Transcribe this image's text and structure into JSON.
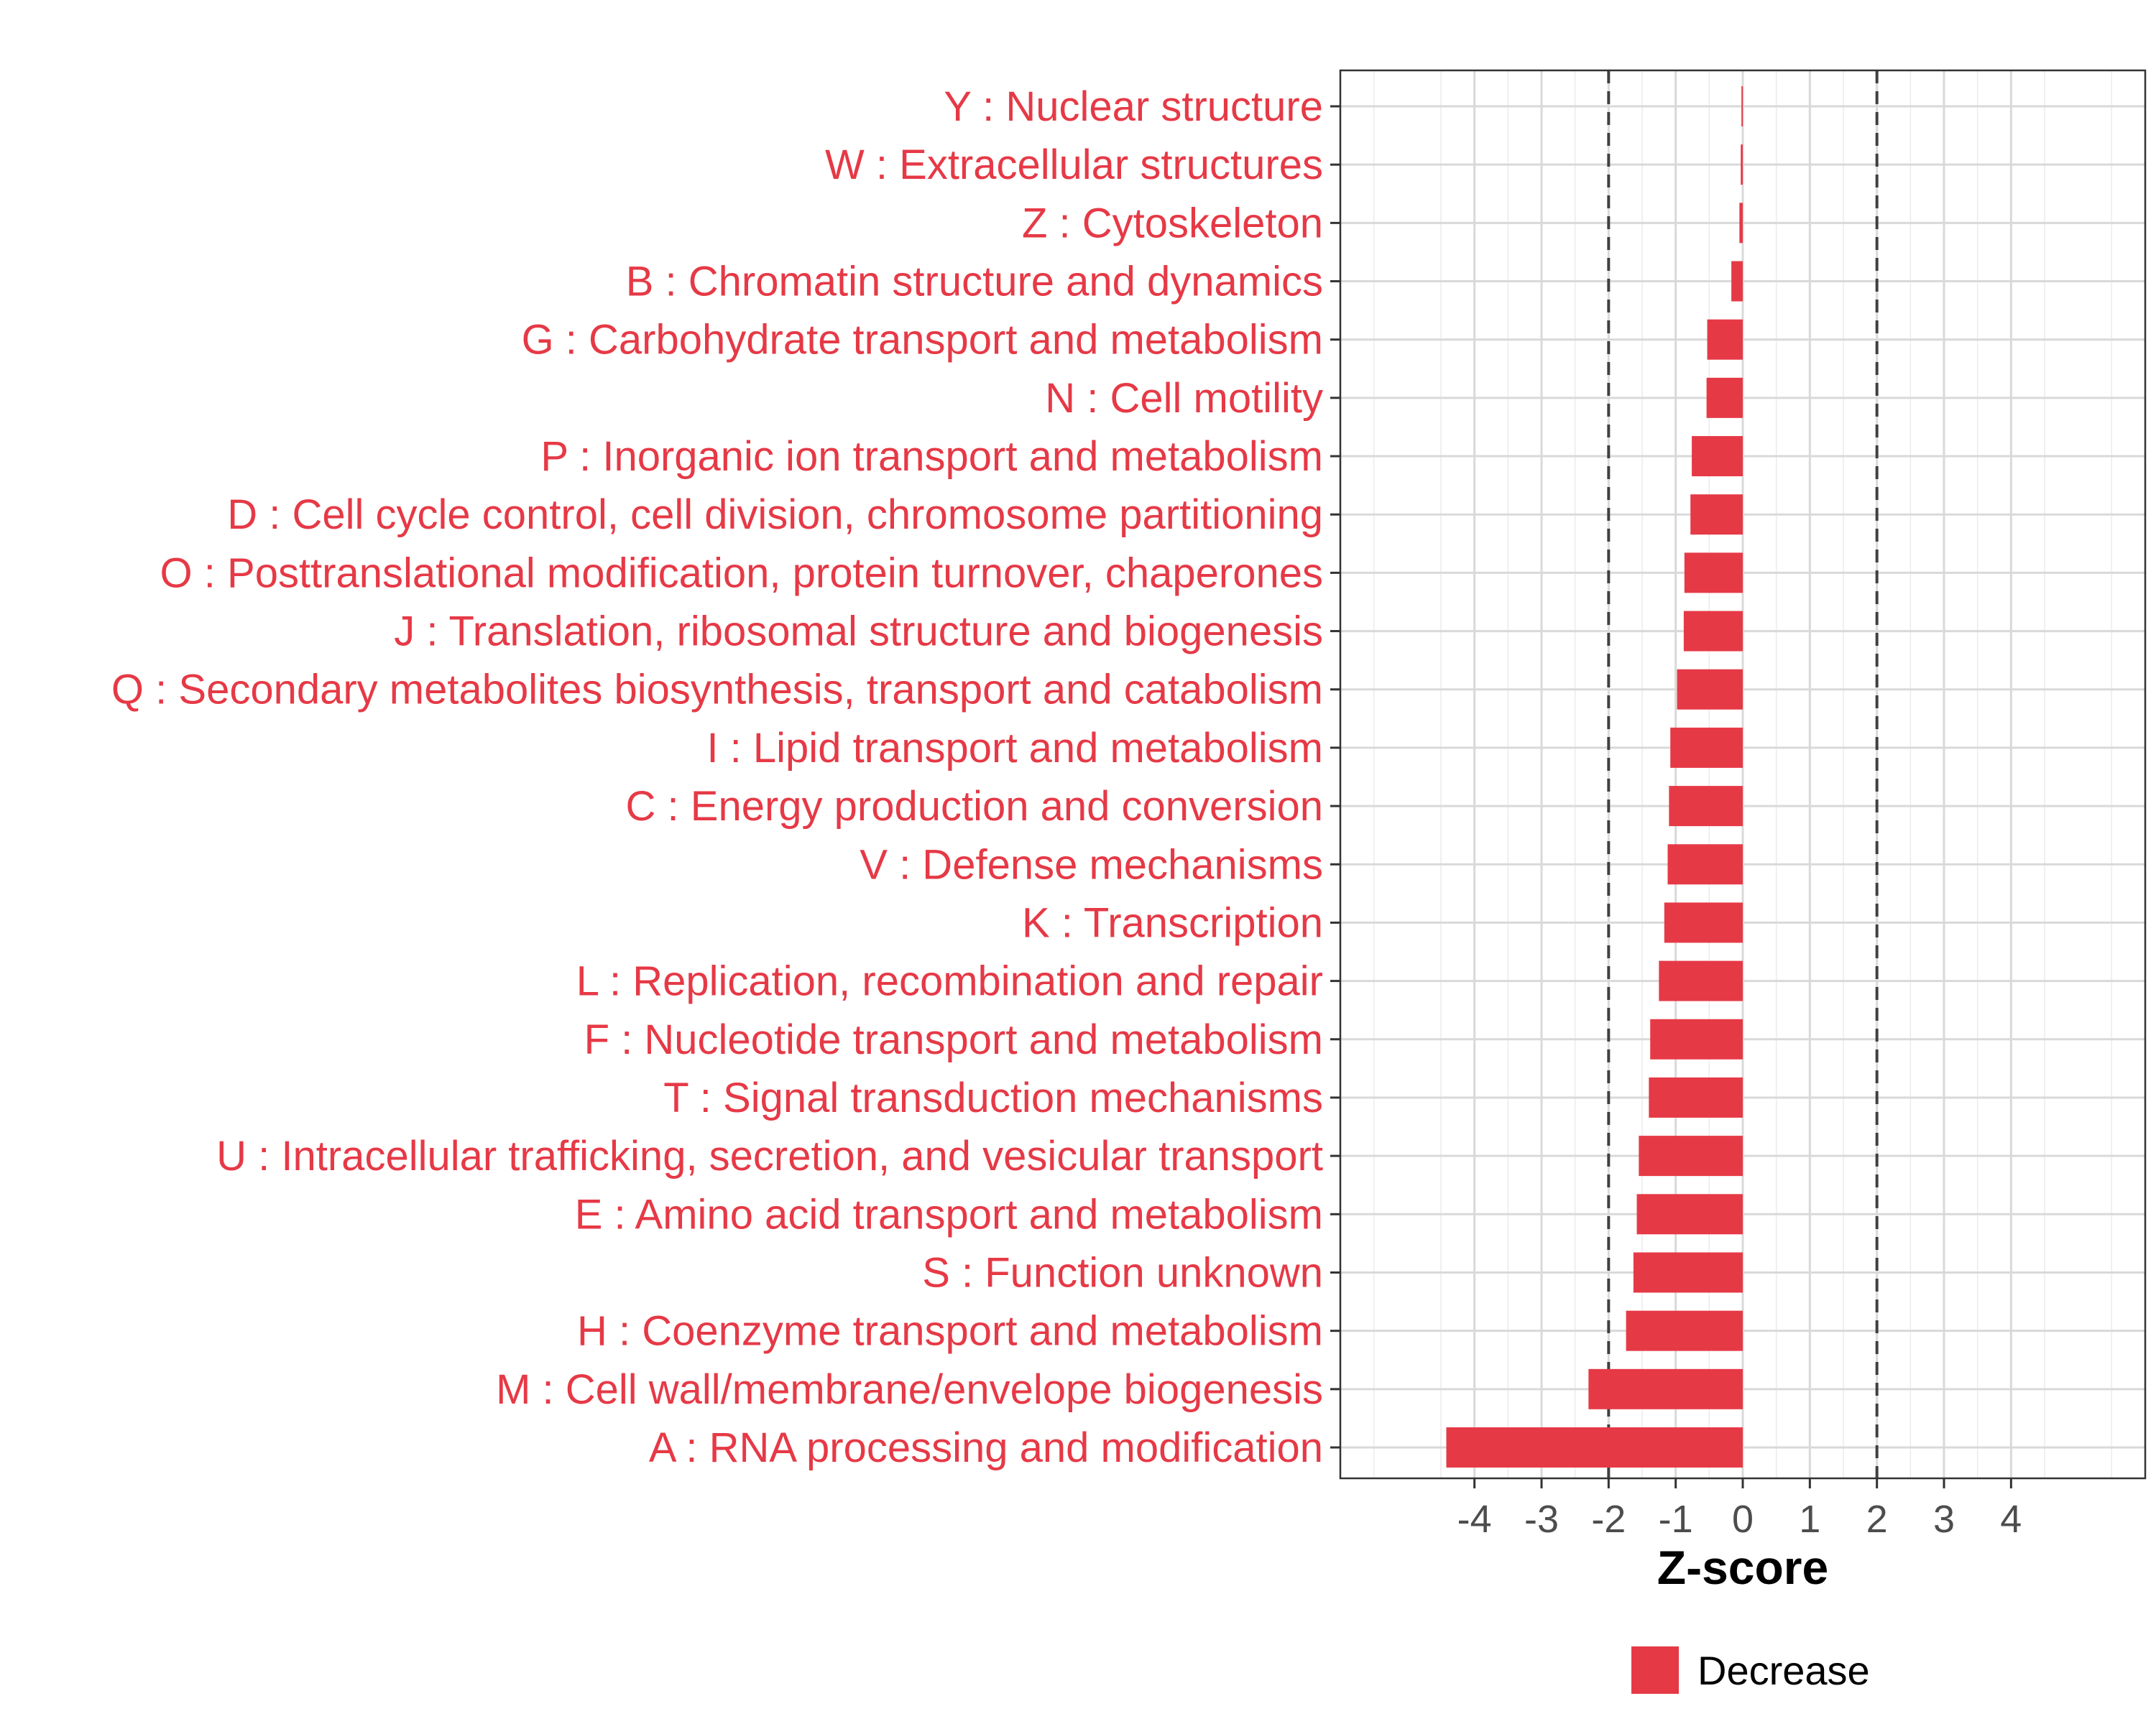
{
  "chart_data": {
    "type": "bar",
    "orientation": "horizontal",
    "categories": [
      "Y : Nuclear structure",
      "W : Extracellular structures",
      "Z : Cytoskeleton",
      "B : Chromatin structure and dynamics",
      "G : Carbohydrate transport and metabolism",
      "N : Cell motility",
      "P : Inorganic ion transport and metabolism",
      "D : Cell cycle control, cell division, chromosome partitioning",
      "O : Posttranslational modification, protein turnover, chaperones",
      "J : Translation, ribosomal structure and biogenesis",
      "Q : Secondary metabolites biosynthesis, transport and catabolism",
      "I : Lipid transport and metabolism",
      "C : Energy production and conversion",
      "V : Defense mechanisms",
      "K : Transcription",
      "L : Replication, recombination and repair",
      "F : Nucleotide transport and metabolism",
      "T : Signal transduction mechanisms",
      "U : Intracellular trafficking, secretion, and vesicular transport",
      "E : Amino acid transport and metabolism",
      "S : Function unknown",
      "H : Coenzyme transport and metabolism",
      "M : Cell wall/membrane/envelope biogenesis",
      "A : RNA processing and modification"
    ],
    "values": [
      -0.02,
      -0.03,
      -0.05,
      -0.17,
      -0.53,
      -0.54,
      -0.76,
      -0.78,
      -0.87,
      -0.88,
      -0.98,
      -1.08,
      -1.1,
      -1.12,
      -1.17,
      -1.25,
      -1.38,
      -1.4,
      -1.55,
      -1.58,
      -1.63,
      -1.74,
      -2.3,
      -4.42
    ],
    "xlabel": "Z-score",
    "ylabel": "",
    "title": "",
    "xlim": [
      -6,
      6
    ],
    "xticks": [
      -4,
      -3,
      -2,
      -1,
      0,
      1,
      2,
      3,
      4
    ],
    "reference_lines": [
      -2,
      2
    ],
    "grid": true,
    "bar_color": "#e63946",
    "label_color": "#e63946",
    "legend": {
      "placement": "bottom",
      "entries": [
        {
          "label": "Decrease",
          "color": "#e63946"
        }
      ]
    }
  }
}
